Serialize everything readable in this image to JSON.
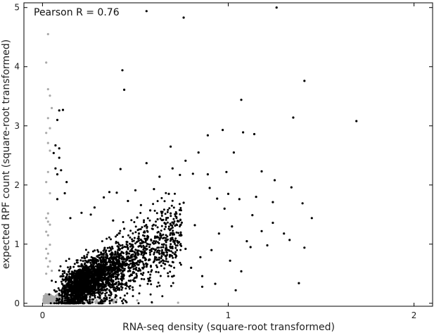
{
  "chart_data": {
    "type": "scatter",
    "title": "",
    "xlabel": "RNA-seq density (square-root transformed)",
    "ylabel": "expected RPF count (square-root transformed)",
    "annotation": "Pearson R = 0.76",
    "xlim": [
      -0.1,
      2.1
    ],
    "ylim": [
      -0.05,
      5.08
    ],
    "xticks": [
      0,
      1,
      2
    ],
    "yticks": [
      0,
      1,
      2,
      3,
      4,
      5
    ],
    "grid": false,
    "legend": "none",
    "series": [
      {
        "color": "#000000",
        "role": "main",
        "points": [
          [
            0.56,
            4.94
          ],
          [
            0.76,
            4.83
          ],
          [
            1.26,
            5.0
          ],
          [
            0.43,
            3.94
          ],
          [
            0.44,
            3.61
          ],
          [
            1.41,
            3.76
          ],
          [
            1.07,
            3.44
          ],
          [
            1.35,
            3.14
          ],
          [
            1.69,
            3.08
          ],
          [
            0.97,
            2.93
          ],
          [
            1.08,
            2.89
          ],
          [
            1.14,
            2.86
          ],
          [
            0.89,
            2.84
          ],
          [
            0.69,
            2.65
          ],
          [
            0.77,
            2.41
          ],
          [
            0.84,
            2.55
          ],
          [
            1.03,
            2.55
          ],
          [
            0.56,
            2.37
          ],
          [
            0.42,
            2.27
          ],
          [
            0.7,
            2.28
          ],
          [
            0.63,
            2.14
          ],
          [
            0.74,
            2.17
          ],
          [
            0.81,
            2.19
          ],
          [
            0.89,
            2.18
          ],
          [
            0.99,
            2.22
          ],
          [
            1.18,
            2.23
          ],
          [
            1.25,
            2.08
          ],
          [
            1.34,
            1.96
          ],
          [
            1.24,
            1.71
          ],
          [
            1.4,
            1.69
          ],
          [
            1.45,
            1.44
          ],
          [
            1.41,
            0.94
          ],
          [
            1.38,
            0.34
          ],
          [
            0.94,
            1.77
          ],
          [
            1.0,
            1.85
          ],
          [
            1.06,
            1.76
          ],
          [
            1.13,
            1.49
          ],
          [
            1.18,
            1.22
          ],
          [
            1.24,
            1.36
          ],
          [
            1.3,
            1.18
          ],
          [
            1.12,
            0.95
          ],
          [
            1.01,
            0.72
          ],
          [
            1.07,
            0.54
          ],
          [
            0.86,
            0.46
          ],
          [
            0.93,
            0.33
          ],
          [
            1.04,
            0.22
          ],
          [
            0.86,
            0.28
          ],
          [
            0.8,
            0.6
          ],
          [
            0.85,
            0.78
          ],
          [
            0.77,
            0.92
          ],
          [
            0.7,
            1.28
          ],
          [
            0.62,
            1.42
          ],
          [
            0.69,
            1.52
          ],
          [
            0.82,
            1.32
          ],
          [
            0.95,
            1.18
          ],
          [
            1.1,
            1.05
          ],
          [
            1.21,
            0.98
          ],
          [
            1.33,
            1.07
          ],
          [
            0.11,
            3.27
          ],
          [
            0.09,
            3.26
          ],
          [
            0.08,
            3.1
          ],
          [
            0.07,
            2.67
          ],
          [
            0.09,
            2.62
          ],
          [
            0.06,
            2.54
          ],
          [
            0.09,
            2.46
          ],
          [
            0.07,
            2.28
          ],
          [
            0.1,
            2.25
          ],
          [
            0.08,
            2.18
          ],
          [
            0.13,
            2.05
          ],
          [
            0.12,
            1.86
          ],
          [
            0.08,
            1.76
          ],
          [
            0.15,
            1.44
          ],
          [
            0.21,
            1.53
          ],
          [
            0.26,
            1.5
          ],
          [
            0.28,
            1.62
          ],
          [
            0.33,
            1.79
          ],
          [
            0.36,
            1.88
          ],
          [
            0.4,
            1.87
          ],
          [
            0.46,
            1.73
          ],
          [
            0.5,
            1.91
          ],
          [
            0.53,
            1.66
          ],
          [
            0.58,
            1.57
          ],
          [
            0.55,
            1.2
          ],
          [
            0.6,
            1.05
          ],
          [
            0.65,
            0.95
          ],
          [
            0.72,
            0.8
          ],
          [
            0.56,
            0.62
          ],
          [
            0.48,
            0.78
          ],
          [
            0.66,
            0.66
          ],
          [
            0.91,
            0.9
          ],
          [
            1.02,
            1.3
          ],
          [
            0.98,
            1.6
          ],
          [
            1.15,
            1.8
          ],
          [
            0.9,
            1.95
          ],
          [
            0.76,
            1.7
          ],
          [
            0.68,
            1.85
          ],
          [
            0.6,
            1.93
          ],
          [
            0.51,
            1.45
          ],
          [
            0.44,
            1.26
          ],
          [
            0.38,
            1.4
          ]
        ],
        "cluster": {
          "x": [
            0.02,
            0.78
          ],
          "y": [
            0.0,
            1.95
          ],
          "n": 2700,
          "centroid": [
            0.15,
            0.35
          ]
        }
      },
      {
        "color": "#aaaaaa",
        "role": "excluded",
        "points": [
          [
            0.03,
            4.55
          ],
          [
            0.02,
            4.07
          ],
          [
            0.03,
            3.62
          ],
          [
            0.04,
            3.51
          ],
          [
            0.05,
            3.3
          ],
          [
            0.03,
            3.13
          ],
          [
            0.04,
            2.96
          ],
          [
            0.02,
            2.88
          ],
          [
            0.03,
            2.71
          ],
          [
            0.04,
            2.58
          ],
          [
            0.03,
            2.22
          ],
          [
            0.02,
            2.05
          ],
          [
            0.04,
            1.86
          ],
          [
            0.03,
            1.52
          ],
          [
            0.02,
            1.44
          ],
          [
            0.03,
            1.38
          ],
          [
            0.04,
            1.33
          ],
          [
            0.02,
            1.21
          ],
          [
            0.03,
            1.15
          ],
          [
            0.04,
            0.99
          ],
          [
            0.02,
            0.92
          ],
          [
            0.03,
            0.84
          ],
          [
            0.02,
            0.76
          ],
          [
            0.04,
            0.71
          ],
          [
            0.03,
            0.62
          ],
          [
            0.05,
            0.55
          ],
          [
            0.02,
            0.5
          ],
          [
            0.36,
            0.04
          ],
          [
            0.45,
            0.02
          ],
          [
            0.51,
            0.05
          ],
          [
            0.59,
            0.01
          ],
          [
            0.73,
            0.01
          ],
          [
            0.3,
            0.02
          ],
          [
            0.27,
            0.06
          ],
          [
            0.25,
            0.03
          ]
        ],
        "cluster": {
          "x": [
            0.0,
            0.4
          ],
          "y": [
            0.0,
            0.5
          ],
          "n": 650,
          "centroid": [
            0.04,
            0.08
          ]
        }
      }
    ]
  }
}
